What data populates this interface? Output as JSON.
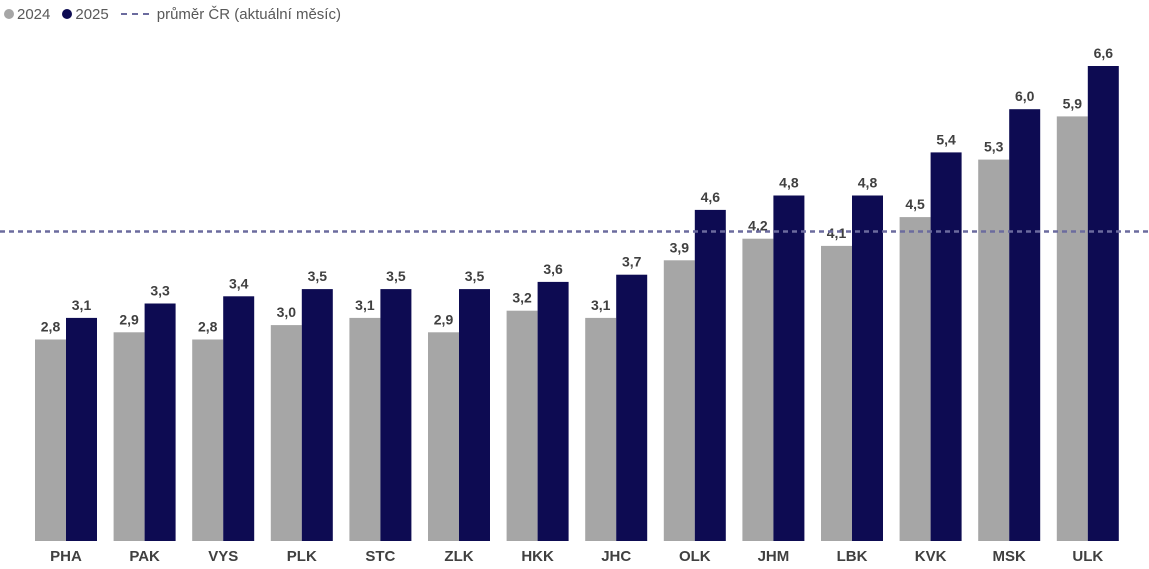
{
  "legend": {
    "series_2024": "2024",
    "series_2025": "2025",
    "average_line": "průměr ČR (aktuální měsíc)"
  },
  "colors": {
    "series_2024": "#a6a6a6",
    "series_2025": "#0d0b52",
    "average_line": "#6b6b9e",
    "label_text": "#404040"
  },
  "chart_data": {
    "type": "bar",
    "categories": [
      "PHA",
      "PAK",
      "VYS",
      "PLK",
      "STC",
      "ZLK",
      "HKK",
      "JHC",
      "OLK",
      "JHM",
      "LBK",
      "KVK",
      "MSK",
      "ULK"
    ],
    "series": [
      {
        "name": "2024",
        "values": [
          2.8,
          2.9,
          2.8,
          3.0,
          3.1,
          2.9,
          3.2,
          3.1,
          3.9,
          4.2,
          4.1,
          4.5,
          5.3,
          5.9
        ],
        "labels": [
          "2,8",
          "2,9",
          "2,8",
          "3,0",
          "3,1",
          "2,9",
          "3,2",
          "3,1",
          "3,9",
          "4,2",
          "4,1",
          "4,5",
          "5,3",
          "5,9"
        ]
      },
      {
        "name": "2025",
        "values": [
          3.1,
          3.3,
          3.4,
          3.5,
          3.5,
          3.5,
          3.6,
          3.7,
          4.6,
          4.8,
          4.8,
          5.4,
          6.0,
          6.6
        ],
        "labels": [
          "3,1",
          "3,3",
          "3,4",
          "3,5",
          "3,5",
          "3,5",
          "3,6",
          "3,7",
          "4,6",
          "4,8",
          "4,8",
          "5,4",
          "6,0",
          "6,6"
        ]
      }
    ],
    "reference_line": {
      "name": "průměr ČR (aktuální měsíc)",
      "value": 4.3
    },
    "ylim": [
      0,
      6.6
    ],
    "grid": false,
    "legend_position": "top-left"
  }
}
